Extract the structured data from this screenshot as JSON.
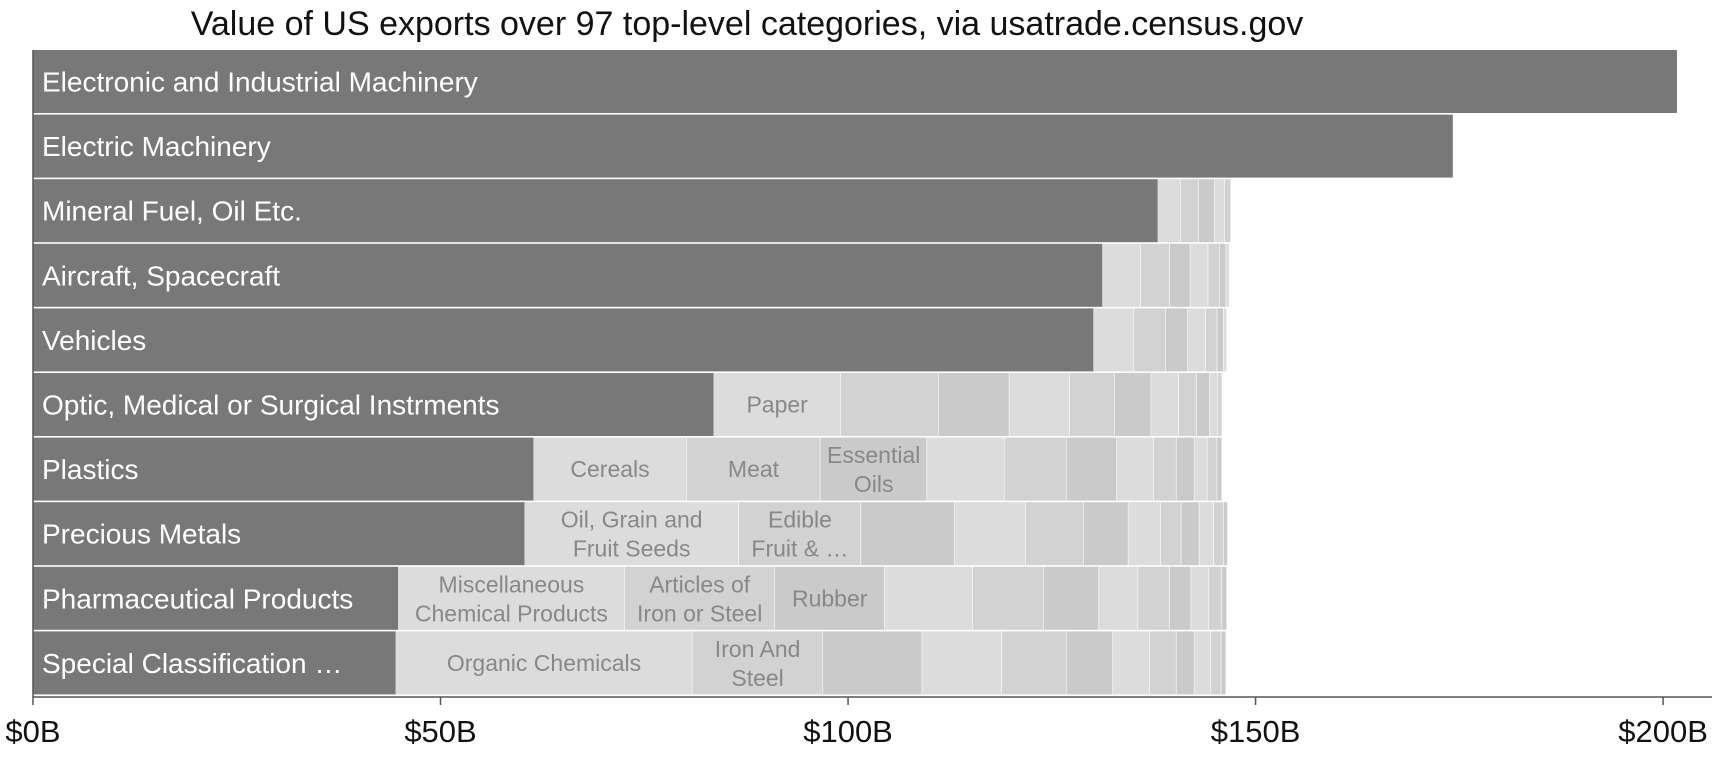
{
  "chart_data": {
    "type": "bar",
    "orientation": "horizontal",
    "stacked_remainder": true,
    "title": "Value of US exports over 97 top-level categories, via usatrade.census.gov",
    "xlabel": "",
    "ylabel": "",
    "xlim": [
      0,
      206
    ],
    "x_unit": "billion USD",
    "x_ticks": [
      0,
      50,
      100,
      150,
      200
    ],
    "x_tick_labels": [
      "$0B",
      "$50B",
      "$100B",
      "$150B",
      "$200B"
    ],
    "colors": {
      "primary_bar": "#787878",
      "segment_light": "#dcdcdc",
      "segment_mid": "#d2d2d2",
      "segment_dark": "#cacaca",
      "axis": "#555555"
    },
    "rows": [
      {
        "label": "Electronic and Industrial Machinery",
        "value": 201.7,
        "stack": []
      },
      {
        "label": "Electric Machinery",
        "value": 174.2,
        "stack": []
      },
      {
        "label": "Mineral Fuel, Oil Etc.",
        "value": 138.0,
        "stack": [
          {
            "label": "",
            "value": 2.8
          },
          {
            "label": "",
            "value": 2.2
          },
          {
            "label": "",
            "value": 2.0
          },
          {
            "label": "",
            "value": 1.2
          },
          {
            "label": "",
            "value": 0.8
          }
        ]
      },
      {
        "label": "Aircraft, Spacecraft",
        "value": 131.2,
        "stack": [
          {
            "label": "",
            "value": 4.7
          },
          {
            "label": "",
            "value": 3.6
          },
          {
            "label": "",
            "value": 2.5
          },
          {
            "label": "",
            "value": 2.2
          },
          {
            "label": "",
            "value": 1.4
          },
          {
            "label": "",
            "value": 0.8
          },
          {
            "label": "",
            "value": 0.4
          }
        ]
      },
      {
        "label": "Vehicles",
        "value": 130.1,
        "stack": [
          {
            "label": "",
            "value": 5.0
          },
          {
            "label": "",
            "value": 3.9
          },
          {
            "label": "",
            "value": 2.7
          },
          {
            "label": "",
            "value": 2.2
          },
          {
            "label": "",
            "value": 1.4
          },
          {
            "label": "",
            "value": 0.8
          },
          {
            "label": "",
            "value": 0.4
          }
        ]
      },
      {
        "label": "Optic, Medical or Surgical Instrments",
        "value": 83.5,
        "stack": [
          {
            "label": "Paper",
            "value": 15.6
          },
          {
            "label": "",
            "value": 12.0
          },
          {
            "label": "",
            "value": 8.7
          },
          {
            "label": "",
            "value": 7.4
          },
          {
            "label": "",
            "value": 5.5
          },
          {
            "label": "",
            "value": 4.5
          },
          {
            "label": "",
            "value": 3.4
          },
          {
            "label": "",
            "value": 2.2
          },
          {
            "label": "",
            "value": 1.6
          },
          {
            "label": "",
            "value": 1.0
          },
          {
            "label": "",
            "value": 0.5
          }
        ]
      },
      {
        "label": "Plastics",
        "value": 61.4,
        "stack": [
          {
            "label": "Cereals",
            "value": 18.8
          },
          {
            "label": "Meat",
            "value": 16.4
          },
          {
            "label": "Essential Oils",
            "value": 13.1
          },
          {
            "label": "",
            "value": 9.5
          },
          {
            "label": "",
            "value": 7.6
          },
          {
            "label": "",
            "value": 6.2
          },
          {
            "label": "",
            "value": 4.5
          },
          {
            "label": "",
            "value": 2.8
          },
          {
            "label": "",
            "value": 2.2
          },
          {
            "label": "",
            "value": 1.6
          },
          {
            "label": "",
            "value": 1.2
          },
          {
            "label": "",
            "value": 0.6
          }
        ]
      },
      {
        "label": "Precious Metals",
        "value": 60.3,
        "stack": [
          {
            "label": "Oil, Grain and Fruit Seeds",
            "value": 26.3
          },
          {
            "label": "Edible Fruit & …",
            "value": 15.0
          },
          {
            "label": "",
            "value": 11.5
          },
          {
            "label": "",
            "value": 8.7
          },
          {
            "label": "",
            "value": 7.1
          },
          {
            "label": "",
            "value": 5.5
          },
          {
            "label": "",
            "value": 4.0
          },
          {
            "label": "",
            "value": 2.5
          },
          {
            "label": "",
            "value": 2.2
          },
          {
            "label": "",
            "value": 1.8
          },
          {
            "label": "",
            "value": 1.2
          },
          {
            "label": "",
            "value": 0.5
          }
        ]
      },
      {
        "label": "Pharmaceutical Products",
        "value": 44.8,
        "stack": [
          {
            "label": "Miscellaneous Chemical Products",
            "value": 27.8
          },
          {
            "label": "Articles of Iron or Steel",
            "value": 18.4
          },
          {
            "label": "Rubber",
            "value": 13.5
          },
          {
            "label": "",
            "value": 10.8
          },
          {
            "label": "",
            "value": 8.7
          },
          {
            "label": "",
            "value": 6.8
          },
          {
            "label": "",
            "value": 4.8
          },
          {
            "label": "",
            "value": 3.9
          },
          {
            "label": "",
            "value": 2.6
          },
          {
            "label": "",
            "value": 2.2
          },
          {
            "label": "",
            "value": 1.6
          },
          {
            "label": "",
            "value": 0.6
          }
        ]
      },
      {
        "label": "Special Classification …",
        "value": 44.5,
        "stack": [
          {
            "label": "Organic Chemicals",
            "value": 36.4
          },
          {
            "label": "Iron And Steel",
            "value": 16.0
          },
          {
            "label": "",
            "value": 12.2
          },
          {
            "label": "",
            "value": 9.8
          },
          {
            "label": "",
            "value": 7.9
          },
          {
            "label": "",
            "value": 5.7
          },
          {
            "label": "",
            "value": 4.5
          },
          {
            "label": "",
            "value": 3.3
          },
          {
            "label": "",
            "value": 2.2
          },
          {
            "label": "",
            "value": 2.0
          },
          {
            "label": "",
            "value": 1.3
          },
          {
            "label": "",
            "value": 0.6
          }
        ]
      }
    ]
  }
}
